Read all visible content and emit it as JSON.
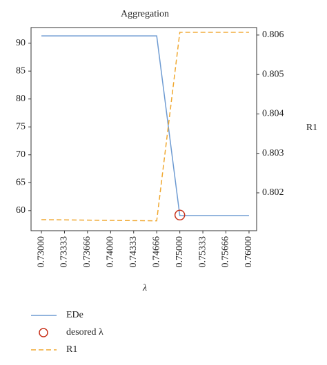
{
  "chart_data": {
    "type": "line",
    "title": "Aggregation",
    "x_label": "λ",
    "y2_label": "R1",
    "xlim": [
      0.7285,
      0.7611
    ],
    "xticks": [
      {
        "value": 0.73,
        "label": "0.73000"
      },
      0.73333,
      0.73666,
      {
        "value": 0.74,
        "label": "0.74000"
      },
      0.74333,
      0.74666,
      {
        "value": 0.75,
        "label": "0.75000"
      },
      0.75333,
      0.75666,
      {
        "value": 0.76,
        "label": "0.76000"
      }
    ],
    "ylim": [
      56.4,
      92.8
    ],
    "yticks": [
      60,
      65,
      70,
      75,
      80,
      85,
      90
    ],
    "y2lim": [
      0.80104,
      0.80619
    ],
    "y2ticks": [
      0.802,
      0.803,
      0.804,
      0.805,
      0.806
    ],
    "series": [
      {
        "name": "EDe",
        "color": "#6e9bd2",
        "style": "solid",
        "x": [
          0.73,
          0.74666,
          0.75,
          0.76
        ],
        "values": [
          91.3,
          91.3,
          59.1,
          59.1
        ]
      },
      {
        "name": "desored λ",
        "color": "#c8321c",
        "style": "marker",
        "x": [
          0.75
        ],
        "values": [
          59.2
        ]
      },
      {
        "name": "R1",
        "color": "#f0a830",
        "style": "dashed",
        "axis": "y2",
        "x": [
          0.73,
          0.74666,
          0.75,
          0.76
        ],
        "values": [
          0.80132,
          0.80129,
          0.80607,
          0.80607
        ]
      }
    ]
  }
}
